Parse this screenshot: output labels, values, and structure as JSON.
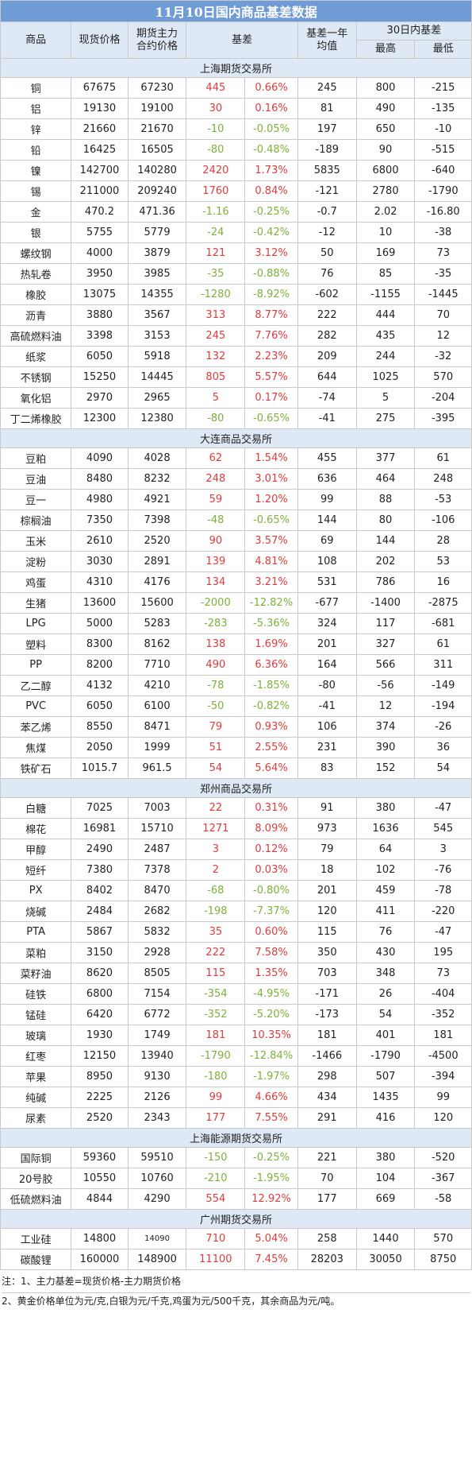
{
  "title": "11月10日国内商品基差数据",
  "headers": {
    "name": "商品",
    "spot": "现货价格",
    "futures": "期货主力合约价格",
    "basis": "基差",
    "avg": "基差一年均值",
    "range30": "30日内基差",
    "max": "最高",
    "min": "最低"
  },
  "sections": [
    {
      "name": "上海期货交易所",
      "rows": [
        {
          "name": "铜",
          "spot": "67675",
          "fut": "67230",
          "basis": "445",
          "pct": "0.66%",
          "avg": "245",
          "max": "800",
          "min": "-215",
          "dir": "red"
        },
        {
          "name": "铝",
          "spot": "19130",
          "fut": "19100",
          "basis": "30",
          "pct": "0.16%",
          "avg": "81",
          "max": "490",
          "min": "-135",
          "dir": "red"
        },
        {
          "name": "锌",
          "spot": "21660",
          "fut": "21670",
          "basis": "-10",
          "pct": "-0.05%",
          "avg": "197",
          "max": "650",
          "min": "-10",
          "dir": "green"
        },
        {
          "name": "铅",
          "spot": "16425",
          "fut": "16505",
          "basis": "-80",
          "pct": "-0.48%",
          "avg": "-189",
          "max": "90",
          "min": "-515",
          "dir": "green"
        },
        {
          "name": "镍",
          "spot": "142700",
          "fut": "140280",
          "basis": "2420",
          "pct": "1.73%",
          "avg": "5835",
          "max": "6800",
          "min": "-640",
          "dir": "red"
        },
        {
          "name": "锡",
          "spot": "211000",
          "fut": "209240",
          "basis": "1760",
          "pct": "0.84%",
          "avg": "-121",
          "max": "2780",
          "min": "-1790",
          "dir": "red"
        },
        {
          "name": "金",
          "spot": "470.2",
          "fut": "471.36",
          "basis": "-1.16",
          "pct": "-0.25%",
          "avg": "-0.7",
          "max": "2.02",
          "min": "-16.80",
          "dir": "green"
        },
        {
          "name": "银",
          "spot": "5755",
          "fut": "5779",
          "basis": "-24",
          "pct": "-0.42%",
          "avg": "-12",
          "max": "10",
          "min": "-38",
          "dir": "green"
        },
        {
          "name": "螺纹钢",
          "spot": "4000",
          "fut": "3879",
          "basis": "121",
          "pct": "3.12%",
          "avg": "50",
          "max": "169",
          "min": "73",
          "dir": "red"
        },
        {
          "name": "热轧卷",
          "spot": "3950",
          "fut": "3985",
          "basis": "-35",
          "pct": "-0.88%",
          "avg": "76",
          "max": "85",
          "min": "-35",
          "dir": "green"
        },
        {
          "name": "橡胶",
          "spot": "13075",
          "fut": "14355",
          "basis": "-1280",
          "pct": "-8.92%",
          "avg": "-602",
          "max": "-1155",
          "min": "-1445",
          "dir": "green"
        },
        {
          "name": "沥青",
          "spot": "3880",
          "fut": "3567",
          "basis": "313",
          "pct": "8.77%",
          "avg": "222",
          "max": "444",
          "min": "70",
          "dir": "red"
        },
        {
          "name": "高硫燃料油",
          "spot": "3398",
          "fut": "3153",
          "basis": "245",
          "pct": "7.76%",
          "avg": "282",
          "max": "435",
          "min": "12",
          "dir": "red"
        },
        {
          "name": "纸浆",
          "spot": "6050",
          "fut": "5918",
          "basis": "132",
          "pct": "2.23%",
          "avg": "209",
          "max": "244",
          "min": "-32",
          "dir": "red"
        },
        {
          "name": "不锈钢",
          "spot": "15250",
          "fut": "14445",
          "basis": "805",
          "pct": "5.57%",
          "avg": "644",
          "max": "1025",
          "min": "570",
          "dir": "red"
        },
        {
          "name": "氧化铝",
          "spot": "2970",
          "fut": "2965",
          "basis": "5",
          "pct": "0.17%",
          "avg": "-74",
          "max": "5",
          "min": "-204",
          "dir": "red"
        },
        {
          "name": "丁二烯橡胶",
          "spot": "12300",
          "fut": "12380",
          "basis": "-80",
          "pct": "-0.65%",
          "avg": "-41",
          "max": "275",
          "min": "-395",
          "dir": "green"
        }
      ]
    },
    {
      "name": "大连商品交易所",
      "rows": [
        {
          "name": "豆粕",
          "spot": "4090",
          "fut": "4028",
          "basis": "62",
          "pct": "1.54%",
          "avg": "455",
          "max": "377",
          "min": "61",
          "dir": "red"
        },
        {
          "name": "豆油",
          "spot": "8480",
          "fut": "8232",
          "basis": "248",
          "pct": "3.01%",
          "avg": "636",
          "max": "464",
          "min": "248",
          "dir": "red"
        },
        {
          "name": "豆一",
          "spot": "4980",
          "fut": "4921",
          "basis": "59",
          "pct": "1.20%",
          "avg": "99",
          "max": "88",
          "min": "-53",
          "dir": "red"
        },
        {
          "name": "棕榈油",
          "spot": "7350",
          "fut": "7398",
          "basis": "-48",
          "pct": "-0.65%",
          "avg": "144",
          "max": "80",
          "min": "-106",
          "dir": "green"
        },
        {
          "name": "玉米",
          "spot": "2610",
          "fut": "2520",
          "basis": "90",
          "pct": "3.57%",
          "avg": "69",
          "max": "144",
          "min": "28",
          "dir": "red"
        },
        {
          "name": "淀粉",
          "spot": "3030",
          "fut": "2891",
          "basis": "139",
          "pct": "4.81%",
          "avg": "108",
          "max": "202",
          "min": "53",
          "dir": "red"
        },
        {
          "name": "鸡蛋",
          "spot": "4310",
          "fut": "4176",
          "basis": "134",
          "pct": "3.21%",
          "avg": "531",
          "max": "786",
          "min": "16",
          "dir": "red"
        },
        {
          "name": "生猪",
          "spot": "13600",
          "fut": "15600",
          "basis": "-2000",
          "pct": "-12.82%",
          "avg": "-677",
          "max": "-1400",
          "min": "-2875",
          "dir": "green"
        },
        {
          "name": "LPG",
          "spot": "5000",
          "fut": "5283",
          "basis": "-283",
          "pct": "-5.36%",
          "avg": "324",
          "max": "117",
          "min": "-681",
          "dir": "green"
        },
        {
          "name": "塑料",
          "spot": "8300",
          "fut": "8162",
          "basis": "138",
          "pct": "1.69%",
          "avg": "201",
          "max": "327",
          "min": "61",
          "dir": "red"
        },
        {
          "name": "PP",
          "spot": "8200",
          "fut": "7710",
          "basis": "490",
          "pct": "6.36%",
          "avg": "164",
          "max": "566",
          "min": "311",
          "dir": "red"
        },
        {
          "name": "乙二醇",
          "spot": "4132",
          "fut": "4210",
          "basis": "-78",
          "pct": "-1.85%",
          "avg": "-80",
          "max": "-56",
          "min": "-149",
          "dir": "green"
        },
        {
          "name": "PVC",
          "spot": "6050",
          "fut": "6100",
          "basis": "-50",
          "pct": "-0.82%",
          "avg": "-41",
          "max": "12",
          "min": "-194",
          "dir": "green"
        },
        {
          "name": "苯乙烯",
          "spot": "8550",
          "fut": "8471",
          "basis": "79",
          "pct": "0.93%",
          "avg": "106",
          "max": "374",
          "min": "-26",
          "dir": "red"
        },
        {
          "name": "焦煤",
          "spot": "2050",
          "fut": "1999",
          "basis": "51",
          "pct": "2.55%",
          "avg": "231",
          "max": "390",
          "min": "36",
          "dir": "red"
        },
        {
          "name": "铁矿石",
          "spot": "1015.7",
          "fut": "961.5",
          "basis": "54",
          "pct": "5.64%",
          "avg": "83",
          "max": "152",
          "min": "54",
          "dir": "red"
        }
      ]
    },
    {
      "name": "郑州商品交易所",
      "rows": [
        {
          "name": "白糖",
          "spot": "7025",
          "fut": "7003",
          "basis": "22",
          "pct": "0.31%",
          "avg": "91",
          "max": "380",
          "min": "-47",
          "dir": "red"
        },
        {
          "name": "棉花",
          "spot": "16981",
          "fut": "15710",
          "basis": "1271",
          "pct": "8.09%",
          "avg": "973",
          "max": "1636",
          "min": "545",
          "dir": "red"
        },
        {
          "name": "甲醇",
          "spot": "2490",
          "fut": "2487",
          "basis": "3",
          "pct": "0.12%",
          "avg": "79",
          "max": "64",
          "min": "3",
          "dir": "red"
        },
        {
          "name": "短纤",
          "spot": "7380",
          "fut": "7378",
          "basis": "2",
          "pct": "0.03%",
          "avg": "18",
          "max": "102",
          "min": "-76",
          "dir": "red"
        },
        {
          "name": "PX",
          "spot": "8402",
          "fut": "8470",
          "basis": "-68",
          "pct": "-0.80%",
          "avg": "201",
          "max": "459",
          "min": "-78",
          "dir": "green"
        },
        {
          "name": "烧碱",
          "spot": "2484",
          "fut": "2682",
          "basis": "-198",
          "pct": "-7.37%",
          "avg": "120",
          "max": "411",
          "min": "-220",
          "dir": "green"
        },
        {
          "name": "PTA",
          "spot": "5867",
          "fut": "5832",
          "basis": "35",
          "pct": "0.60%",
          "avg": "115",
          "max": "76",
          "min": "-47",
          "dir": "red"
        },
        {
          "name": "菜粕",
          "spot": "3150",
          "fut": "2928",
          "basis": "222",
          "pct": "7.58%",
          "avg": "350",
          "max": "430",
          "min": "195",
          "dir": "red"
        },
        {
          "name": "菜籽油",
          "spot": "8620",
          "fut": "8505",
          "basis": "115",
          "pct": "1.35%",
          "avg": "703",
          "max": "348",
          "min": "73",
          "dir": "red"
        },
        {
          "name": "硅铁",
          "spot": "6800",
          "fut": "7154",
          "basis": "-354",
          "pct": "-4.95%",
          "avg": "-171",
          "max": "26",
          "min": "-404",
          "dir": "green"
        },
        {
          "name": "锰硅",
          "spot": "6420",
          "fut": "6772",
          "basis": "-352",
          "pct": "-5.20%",
          "avg": "-173",
          "max": "54",
          "min": "-352",
          "dir": "green"
        },
        {
          "name": "玻璃",
          "spot": "1930",
          "fut": "1749",
          "basis": "181",
          "pct": "10.35%",
          "avg": "181",
          "max": "401",
          "min": "181",
          "dir": "red"
        },
        {
          "name": "红枣",
          "spot": "12150",
          "fut": "13940",
          "basis": "-1790",
          "pct": "-12.84%",
          "avg": "-1466",
          "max": "-1790",
          "min": "-4500",
          "dir": "green"
        },
        {
          "name": "苹果",
          "spot": "8950",
          "fut": "9130",
          "basis": "-180",
          "pct": "-1.97%",
          "avg": "298",
          "max": "507",
          "min": "-394",
          "dir": "green"
        },
        {
          "name": "纯碱",
          "spot": "2225",
          "fut": "2126",
          "basis": "99",
          "pct": "4.66%",
          "avg": "434",
          "max": "1435",
          "min": "99",
          "dir": "red"
        },
        {
          "name": "尿素",
          "spot": "2520",
          "fut": "2343",
          "basis": "177",
          "pct": "7.55%",
          "avg": "291",
          "max": "416",
          "min": "120",
          "dir": "red"
        }
      ]
    },
    {
      "name": "上海能源期货交易所",
      "rows": [
        {
          "name": "国际铜",
          "spot": "59360",
          "fut": "59510",
          "basis": "-150",
          "pct": "-0.25%",
          "avg": "221",
          "max": "380",
          "min": "-520",
          "dir": "green"
        },
        {
          "name": "20号胶",
          "spot": "10550",
          "fut": "10760",
          "basis": "-210",
          "pct": "-1.95%",
          "avg": "70",
          "max": "104",
          "min": "-367",
          "dir": "green"
        },
        {
          "name": "低硫燃料油",
          "spot": "4844",
          "fut": "4290",
          "basis": "554",
          "pct": "12.92%",
          "avg": "177",
          "max": "669",
          "min": "-58",
          "dir": "red"
        }
      ]
    },
    {
      "name": "广州期货交易所",
      "rows": [
        {
          "name": "工业硅",
          "spot": "14800",
          "fut": "14090",
          "basis": "710",
          "pct": "5.04%",
          "avg": "258",
          "max": "1440",
          "min": "570",
          "dir": "red",
          "small_fut": true
        },
        {
          "name": "碳酸锂",
          "spot": "160000",
          "fut": "148900",
          "basis": "11100",
          "pct": "7.45%",
          "avg": "28203",
          "max": "30050",
          "min": "8750",
          "dir": "red"
        }
      ]
    }
  ],
  "notes": [
    "注：1、主力基差=现货价格-主力期货价格",
    "2、黄金价格单位为元/克,白银为元/千克,鸡蛋为元/500千克，其余商品为元/吨。"
  ],
  "colors": {
    "header_bg": "#6f9bd6",
    "subheader_bg": "#dfe9f6",
    "positive": "#e03b3b",
    "negative": "#7fb03a"
  }
}
